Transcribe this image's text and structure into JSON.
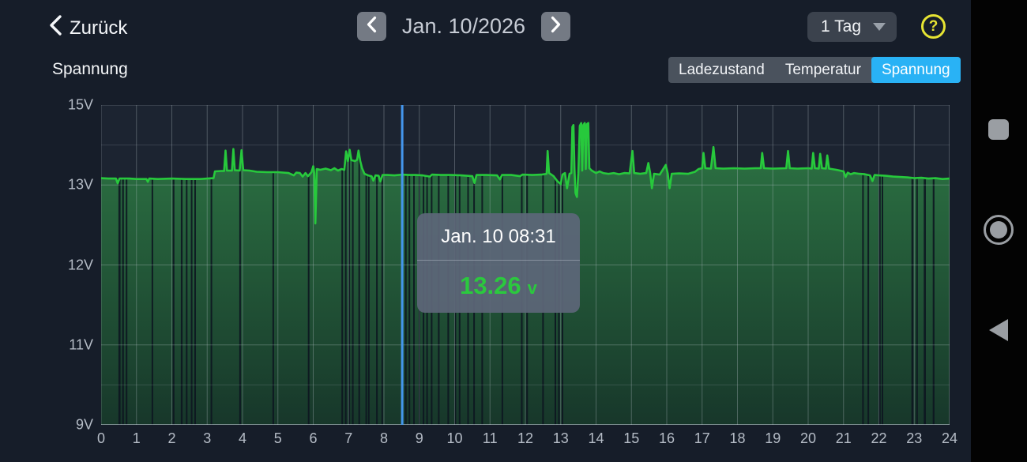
{
  "header": {
    "back_label": "Zurück",
    "date_label": "Jan. 10/2026",
    "range_selected": "1 Tag",
    "help_glyph": "?"
  },
  "chart_header": {
    "title": "Spannung",
    "tabs": [
      {
        "label": "Ladezustand",
        "active": false
      },
      {
        "label": "Temperatur",
        "active": false
      },
      {
        "label": "Spannung",
        "active": true
      }
    ]
  },
  "tooltip": {
    "datetime": "Jan. 10 08:31",
    "value": "13.26",
    "unit": "v"
  },
  "android_nav": {
    "icons": [
      "recents-square",
      "home-circle",
      "back-triangle"
    ]
  },
  "chart_data": {
    "type": "area",
    "title": "Spannung",
    "unit": "V",
    "x_axis": {
      "unit": "hour",
      "min": 0,
      "max": 24
    },
    "x_ticks": [
      0,
      1,
      2,
      3,
      4,
      5,
      6,
      7,
      8,
      9,
      10,
      11,
      12,
      13,
      14,
      15,
      16,
      17,
      18,
      19,
      20,
      21,
      22,
      23,
      24
    ],
    "y_ticks": [
      {
        "label": "15V",
        "v": 15
      },
      {
        "label": "13V",
        "v": 13
      },
      {
        "label": "12V",
        "v": 12
      },
      {
        "label": "11V",
        "v": 11
      },
      {
        "label": "9V",
        "v": 9
      }
    ],
    "y_scale": [
      [
        15,
        0
      ],
      [
        13,
        0.25
      ],
      [
        12,
        0.5
      ],
      [
        11,
        0.75
      ],
      [
        9,
        1
      ]
    ],
    "minor_gridlines_v": [
      14,
      10
    ],
    "grid": true,
    "legend": "none",
    "cursor": {
      "time_h": 8.517,
      "label": "Jan. 10 08:31",
      "value_v": 13.26
    },
    "series": [
      {
        "name": "Spannung",
        "points": [
          [
            0,
            13.17
          ],
          [
            0.2,
            13.16
          ],
          [
            0.42,
            13.16
          ],
          [
            0.47,
            13.04
          ],
          [
            0.52,
            13.16
          ],
          [
            0.8,
            13.16
          ],
          [
            1.0,
            13.15
          ],
          [
            1.28,
            13.15
          ],
          [
            1.32,
            13.08
          ],
          [
            1.36,
            13.16
          ],
          [
            1.6,
            13.15
          ],
          [
            2.0,
            13.16
          ],
          [
            2.4,
            13.15
          ],
          [
            2.8,
            13.15
          ],
          [
            3.0,
            13.16
          ],
          [
            3.18,
            13.17
          ],
          [
            3.22,
            13.34
          ],
          [
            3.4,
            13.35
          ],
          [
            3.48,
            13.35
          ],
          [
            3.52,
            13.86
          ],
          [
            3.56,
            13.36
          ],
          [
            3.7,
            13.36
          ],
          [
            3.74,
            13.9
          ],
          [
            3.78,
            13.37
          ],
          [
            3.92,
            13.36
          ],
          [
            3.97,
            13.87
          ],
          [
            4.02,
            13.37
          ],
          [
            4.2,
            13.36
          ],
          [
            4.4,
            13.33
          ],
          [
            4.7,
            13.32
          ],
          [
            5.0,
            13.32
          ],
          [
            5.3,
            13.3
          ],
          [
            5.45,
            13.24
          ],
          [
            5.52,
            13.31
          ],
          [
            5.62,
            13.3
          ],
          [
            5.7,
            13.21
          ],
          [
            5.78,
            13.3
          ],
          [
            5.85,
            13.22
          ],
          [
            5.95,
            13.32
          ],
          [
            6.0,
            13.47
          ],
          [
            6.03,
            13.3
          ],
          [
            6.06,
            12.52
          ],
          [
            6.1,
            13.4
          ],
          [
            6.2,
            13.38
          ],
          [
            6.35,
            13.41
          ],
          [
            6.5,
            13.37
          ],
          [
            6.6,
            13.42
          ],
          [
            6.7,
            13.36
          ],
          [
            6.8,
            13.4
          ],
          [
            6.88,
            13.38
          ],
          [
            6.93,
            13.84
          ],
          [
            6.98,
            13.6
          ],
          [
            7.03,
            13.88
          ],
          [
            7.08,
            13.62
          ],
          [
            7.18,
            13.6
          ],
          [
            7.24,
            13.63
          ],
          [
            7.28,
            13.86
          ],
          [
            7.33,
            13.6
          ],
          [
            7.38,
            13.42
          ],
          [
            7.45,
            13.28
          ],
          [
            7.55,
            13.24
          ],
          [
            7.65,
            13.22
          ],
          [
            7.7,
            13.11
          ],
          [
            7.76,
            13.24
          ],
          [
            7.85,
            13.23
          ],
          [
            7.9,
            13.09
          ],
          [
            7.96,
            13.25
          ],
          [
            8.1,
            13.25
          ],
          [
            8.3,
            13.24
          ],
          [
            8.52,
            13.26
          ],
          [
            8.7,
            13.25
          ],
          [
            8.9,
            13.25
          ],
          [
            9.1,
            13.24
          ],
          [
            9.3,
            13.21
          ],
          [
            9.36,
            13.26
          ],
          [
            9.6,
            13.25
          ],
          [
            9.9,
            13.25
          ],
          [
            10.2,
            13.24
          ],
          [
            10.5,
            13.22
          ],
          [
            10.56,
            13.05
          ],
          [
            10.62,
            13.25
          ],
          [
            10.9,
            13.25
          ],
          [
            11.2,
            13.24
          ],
          [
            11.28,
            13.14
          ],
          [
            11.34,
            13.25
          ],
          [
            11.6,
            13.25
          ],
          [
            11.85,
            13.22
          ],
          [
            11.92,
            13.26
          ],
          [
            12.2,
            13.25
          ],
          [
            12.45,
            13.26
          ],
          [
            12.6,
            13.28
          ],
          [
            12.63,
            13.85
          ],
          [
            12.67,
            13.3
          ],
          [
            12.8,
            13.22
          ],
          [
            12.9,
            13.1
          ],
          [
            13.0,
            13.02
          ],
          [
            13.05,
            13.26
          ],
          [
            13.12,
            13.3
          ],
          [
            13.18,
            12.96
          ],
          [
            13.25,
            13.28
          ],
          [
            13.3,
            13.3
          ],
          [
            13.33,
            14.45
          ],
          [
            13.36,
            14.5
          ],
          [
            13.39,
            13.4
          ],
          [
            13.42,
            12.9
          ],
          [
            13.46,
            12.85
          ],
          [
            13.5,
            13.3
          ],
          [
            13.54,
            14.48
          ],
          [
            13.58,
            14.55
          ],
          [
            13.61,
            13.36
          ],
          [
            13.64,
            14.5
          ],
          [
            13.68,
            14.55
          ],
          [
            13.71,
            13.4
          ],
          [
            13.74,
            14.52
          ],
          [
            13.78,
            14.55
          ],
          [
            13.81,
            13.42
          ],
          [
            13.88,
            13.36
          ],
          [
            14.0,
            13.3
          ],
          [
            14.1,
            13.34
          ],
          [
            14.2,
            13.3
          ],
          [
            14.35,
            13.28
          ],
          [
            14.5,
            13.3
          ],
          [
            14.65,
            13.27
          ],
          [
            14.8,
            13.3
          ],
          [
            14.95,
            13.29
          ],
          [
            15.03,
            13.85
          ],
          [
            15.08,
            13.3
          ],
          [
            15.25,
            13.28
          ],
          [
            15.42,
            13.3
          ],
          [
            15.48,
            13.55
          ],
          [
            15.53,
            13.3
          ],
          [
            15.58,
            12.96
          ],
          [
            15.64,
            13.28
          ],
          [
            15.8,
            13.26
          ],
          [
            15.97,
            13.5
          ],
          [
            16.03,
            13.28
          ],
          [
            16.08,
            12.96
          ],
          [
            16.14,
            13.28
          ],
          [
            16.35,
            13.29
          ],
          [
            16.6,
            13.28
          ],
          [
            16.8,
            13.33
          ],
          [
            16.9,
            13.4
          ],
          [
            17.0,
            13.42
          ],
          [
            17.04,
            13.8
          ],
          [
            17.09,
            13.42
          ],
          [
            17.25,
            13.41
          ],
          [
            17.32,
            13.95
          ],
          [
            17.38,
            13.42
          ],
          [
            17.6,
            13.41
          ],
          [
            17.9,
            13.42
          ],
          [
            18.2,
            13.41
          ],
          [
            18.5,
            13.42
          ],
          [
            18.66,
            13.42
          ],
          [
            18.7,
            13.8
          ],
          [
            18.75,
            13.42
          ],
          [
            19.0,
            13.41
          ],
          [
            19.38,
            13.42
          ],
          [
            19.43,
            13.85
          ],
          [
            19.48,
            13.42
          ],
          [
            19.7,
            13.41
          ],
          [
            20.0,
            13.42
          ],
          [
            20.1,
            13.41
          ],
          [
            20.14,
            13.8
          ],
          [
            20.19,
            13.42
          ],
          [
            20.3,
            13.41
          ],
          [
            20.34,
            13.78
          ],
          [
            20.39,
            13.42
          ],
          [
            20.5,
            13.41
          ],
          [
            20.54,
            13.74
          ],
          [
            20.59,
            13.41
          ],
          [
            20.8,
            13.38
          ],
          [
            21.0,
            13.34
          ],
          [
            21.06,
            13.2
          ],
          [
            21.12,
            13.31
          ],
          [
            21.2,
            13.27
          ],
          [
            21.3,
            13.3
          ],
          [
            21.45,
            13.28
          ],
          [
            21.6,
            13.27
          ],
          [
            21.75,
            13.24
          ],
          [
            21.82,
            13.1
          ],
          [
            21.88,
            13.25
          ],
          [
            22.0,
            13.24
          ],
          [
            22.2,
            13.23
          ],
          [
            22.4,
            13.21
          ],
          [
            22.6,
            13.2
          ],
          [
            22.8,
            13.19
          ],
          [
            23.0,
            13.17
          ],
          [
            23.2,
            13.18
          ],
          [
            23.4,
            13.16
          ],
          [
            23.6,
            13.17
          ],
          [
            23.8,
            13.15
          ],
          [
            24,
            13.16
          ]
        ]
      }
    ],
    "gap_stripes": [
      [
        0.52,
        0.06
      ],
      [
        0.62,
        0.05
      ],
      [
        0.72,
        0.04
      ],
      [
        1.45,
        0.04
      ],
      [
        2.05,
        0.05
      ],
      [
        2.28,
        0.05
      ],
      [
        2.42,
        0.04
      ],
      [
        2.56,
        0.04
      ],
      [
        2.66,
        0.03
      ],
      [
        3.12,
        0.04
      ],
      [
        3.93,
        0.04
      ],
      [
        4.87,
        0.04
      ],
      [
        5.87,
        0.04
      ],
      [
        6.82,
        0.03
      ],
      [
        6.92,
        0.04
      ],
      [
        7.02,
        0.04
      ],
      [
        7.12,
        0.03
      ],
      [
        7.3,
        0.04
      ],
      [
        7.5,
        0.03
      ],
      [
        7.57,
        0.03
      ],
      [
        7.8,
        0.04
      ],
      [
        7.95,
        0.03
      ],
      [
        8.62,
        0.03
      ],
      [
        8.72,
        0.03
      ],
      [
        8.85,
        0.03
      ],
      [
        9.0,
        0.03
      ],
      [
        9.12,
        0.04
      ],
      [
        9.22,
        0.03
      ],
      [
        9.35,
        0.03
      ],
      [
        9.55,
        0.04
      ],
      [
        9.82,
        0.04
      ],
      [
        10.02,
        0.04
      ],
      [
        10.14,
        0.03
      ],
      [
        10.38,
        0.04
      ],
      [
        10.55,
        0.03
      ],
      [
        10.78,
        0.04
      ],
      [
        11.35,
        0.04
      ],
      [
        11.9,
        0.04
      ],
      [
        12.05,
        0.03
      ],
      [
        12.5,
        0.04
      ],
      [
        12.85,
        0.03
      ],
      [
        12.95,
        0.03
      ],
      [
        13.05,
        0.03
      ],
      [
        21.55,
        0.04
      ],
      [
        21.7,
        0.04
      ],
      [
        22.02,
        0.06
      ],
      [
        22.1,
        0.04
      ],
      [
        22.95,
        0.06
      ],
      [
        23.08,
        0.04
      ],
      [
        23.3,
        0.06
      ],
      [
        23.55,
        0.05
      ]
    ],
    "colors": {
      "line": "#27c93c",
      "fill_top": "#2e7a45",
      "fill_bottom": "#17382a",
      "stripe": "#0d1420",
      "cursor": "#4496ec",
      "grid": "#b9c2cc",
      "plot_bg": "#1c2431",
      "tab_active": "#29b2f5",
      "help_yellow": "#e6e433",
      "tooltip_value": "#2bc93e"
    }
  }
}
